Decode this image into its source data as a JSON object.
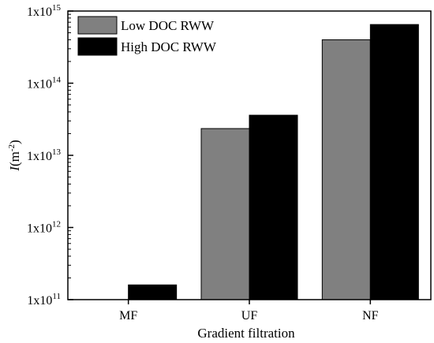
{
  "chart_data": {
    "type": "bar",
    "title": "",
    "xlabel": "Gradient filtration",
    "ylabel": {
      "symbol": "I",
      "unit_open": "(m",
      "unit_exp": "-2",
      "unit_close": ")"
    },
    "categories": [
      "MF",
      "UF",
      "NF"
    ],
    "series": [
      {
        "name": "Low DOC RWW",
        "color": "#808080",
        "values": [
          100000000000,
          23500000000000,
          400000000000000
        ]
      },
      {
        "name": "High DOC RWW",
        "color": "#000000",
        "values": [
          160000000000,
          36000000000000,
          650000000000000
        ]
      }
    ],
    "yscale": "log",
    "ylim": [
      100000000000,
      1000000000000000
    ],
    "yticks": [
      {
        "value": 100000000000,
        "base": "1x10",
        "exp": "11"
      },
      {
        "value": 1000000000000,
        "base": "1x10",
        "exp": "12"
      },
      {
        "value": 10000000000000,
        "base": "1x10",
        "exp": "13"
      },
      {
        "value": 100000000000000,
        "base": "1x10",
        "exp": "14"
      },
      {
        "value": 1000000000000000,
        "base": "1x10",
        "exp": "15"
      }
    ],
    "grid": false,
    "legend": "top-left"
  }
}
